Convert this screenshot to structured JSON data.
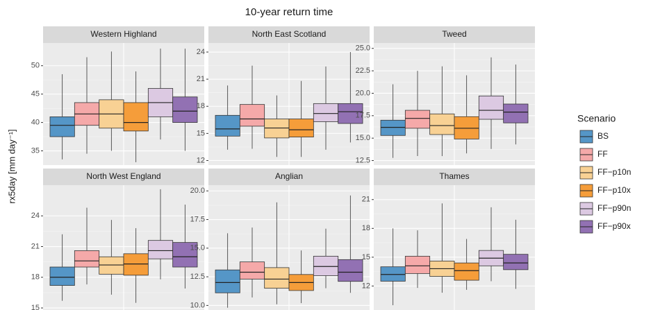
{
  "figure": {
    "title": "10-year return time",
    "y_label": "rx5day [mm day⁻¹]",
    "legend_title": "Scenario",
    "scenarios": [
      {
        "name": "BS",
        "color": "#5596c7"
      },
      {
        "name": "FF",
        "color": "#f5a9a9"
      },
      {
        "name": "FF−p10n",
        "color": "#f8d194"
      },
      {
        "name": "FF−p10x",
        "color": "#f59d3a"
      },
      {
        "name": "FF−p90n",
        "color": "#dcc9e2"
      },
      {
        "name": "FF−p90x",
        "color": "#9271b3"
      }
    ]
  },
  "chart_data": [
    {
      "type": "box",
      "title": "Western Highland",
      "ylim": [
        32.5,
        54
      ],
      "yticks": [
        35,
        40,
        45,
        50
      ],
      "grid": true,
      "boxes": [
        {
          "whislo": 33.5,
          "q1": 37.5,
          "med": 39.5,
          "q3": 41,
          "whishi": 48.5
        },
        {
          "whislo": 34.5,
          "q1": 39.5,
          "med": 41.5,
          "q3": 43.5,
          "whishi": 51.5
        },
        {
          "whislo": 35,
          "q1": 39,
          "med": 41.5,
          "q3": 44,
          "whishi": 52.5
        },
        {
          "whislo": 33,
          "q1": 38.5,
          "med": 40,
          "q3": 43.5,
          "whishi": 49
        },
        {
          "whislo": 37,
          "q1": 41,
          "med": 43.5,
          "q3": 46,
          "whishi": 53
        },
        {
          "whislo": 35,
          "q1": 40,
          "med": 42,
          "q3": 44.5,
          "whishi": 53
        }
      ]
    },
    {
      "type": "box",
      "title": "North East Scotland",
      "ylim": [
        11.5,
        25
      ],
      "yticks": [
        12,
        15,
        18,
        21,
        24
      ],
      "grid": true,
      "boxes": [
        {
          "whislo": 13.2,
          "q1": 14.7,
          "med": 15.5,
          "q3": 17,
          "whishi": 20.3
        },
        {
          "whislo": 13.3,
          "q1": 15.8,
          "med": 16.6,
          "q3": 18.2,
          "whishi": 22.5
        },
        {
          "whislo": 12.4,
          "q1": 14.5,
          "med": 15.6,
          "q3": 16.6,
          "whishi": 19.2
        },
        {
          "whislo": 12.4,
          "q1": 14.6,
          "med": 15.4,
          "q3": 16.6,
          "whishi": 20.8
        },
        {
          "whislo": 13.2,
          "q1": 16.3,
          "med": 17.2,
          "q3": 18.3,
          "whishi": 22.4
        },
        {
          "whislo": 14,
          "q1": 16.1,
          "med": 17.4,
          "q3": 18.3,
          "whishi": 24
        }
      ]
    },
    {
      "type": "box",
      "title": "Tweed",
      "ylim": [
        12,
        25.6
      ],
      "yticks": [
        12.5,
        {
          "value": 15,
          "label": "15.0"
        },
        17.5,
        {
          "value": 20,
          "label": "20.0"
        },
        22.5,
        {
          "value": 25,
          "label": "25.0"
        }
      ],
      "grid": true,
      "boxes": [
        {
          "whislo": 12.8,
          "q1": 15.3,
          "med": 16.2,
          "q3": 17,
          "whishi": 21
        },
        {
          "whislo": 13,
          "q1": 16.1,
          "med": 17.2,
          "q3": 18.1,
          "whishi": 22.5
        },
        {
          "whislo": 13,
          "q1": 15.4,
          "med": 16.4,
          "q3": 17.7,
          "whishi": 23
        },
        {
          "whislo": 13.3,
          "q1": 14.9,
          "med": 16.1,
          "q3": 17.4,
          "whishi": 22
        },
        {
          "whislo": 13.8,
          "q1": 17.1,
          "med": 18.1,
          "q3": 19.7,
          "whishi": 24
        },
        {
          "whislo": 14.3,
          "q1": 16.7,
          "med": 17.9,
          "q3": 18.8,
          "whishi": 23.2
        }
      ]
    },
    {
      "type": "box",
      "title": "North West England",
      "ylim": [
        14.8,
        27
      ],
      "yticks": [
        15,
        18,
        21,
        24
      ],
      "grid": true,
      "boxes": [
        {
          "whislo": 15.7,
          "q1": 17.2,
          "med": 18,
          "q3": 19,
          "whishi": 22.2
        },
        {
          "whislo": 17.3,
          "q1": 19,
          "med": 19.6,
          "q3": 20.6,
          "whishi": 24.8
        },
        {
          "whislo": 16.3,
          "q1": 18.3,
          "med": 19.2,
          "q3": 20,
          "whishi": 23.6
        },
        {
          "whislo": 15.5,
          "q1": 18.2,
          "med": 19.3,
          "q3": 20.3,
          "whishi": 22.8
        },
        {
          "whislo": 17.8,
          "q1": 19.8,
          "med": 20.6,
          "q3": 21.6,
          "whishi": 26.6
        },
        {
          "whislo": 16.9,
          "q1": 19,
          "med": 20,
          "q3": 21.4,
          "whishi": 25.1
        }
      ]
    },
    {
      "type": "box",
      "title": "Anglian",
      "ylim": [
        9.6,
        20.5
      ],
      "yticks": [
        {
          "value": 10,
          "label": "10.0"
        },
        12.5,
        {
          "value": 15,
          "label": "15.0"
        },
        17.5,
        {
          "value": 20,
          "label": "20.0"
        }
      ],
      "grid": true,
      "boxes": [
        {
          "whislo": 9.8,
          "q1": 11.1,
          "med": 12,
          "q3": 13.1,
          "whishi": 16.3
        },
        {
          "whislo": 10.7,
          "q1": 12.3,
          "med": 12.9,
          "q3": 13.8,
          "whishi": 16.8
        },
        {
          "whislo": 10.1,
          "q1": 11.5,
          "med": 12.3,
          "q3": 13.3,
          "whishi": 19
        },
        {
          "whislo": 10.2,
          "q1": 11.3,
          "med": 12,
          "q3": 12.7,
          "whishi": 14.8
        },
        {
          "whislo": 11.5,
          "q1": 12.6,
          "med": 13.4,
          "q3": 14.3,
          "whishi": 16.7
        },
        {
          "whislo": 11.1,
          "q1": 12.1,
          "med": 12.9,
          "q3": 14,
          "whishi": 19.6
        }
      ]
    },
    {
      "type": "box",
      "title": "Thames",
      "ylim": [
        9.5,
        22.5
      ],
      "yticks": [
        12,
        15,
        18,
        21
      ],
      "grid": true,
      "boxes": [
        {
          "whislo": 10,
          "q1": 12.5,
          "med": 13.2,
          "q3": 14,
          "whishi": 18
        },
        {
          "whislo": 11.8,
          "q1": 13.3,
          "med": 14.1,
          "q3": 15.1,
          "whishi": 17.8
        },
        {
          "whislo": 11.3,
          "q1": 13,
          "med": 13.8,
          "q3": 14.6,
          "whishi": 20.6
        },
        {
          "whislo": 11.6,
          "q1": 12.6,
          "med": 13.6,
          "q3": 14.4,
          "whishi": 16.9
        },
        {
          "whislo": 12.5,
          "q1": 14.1,
          "med": 14.9,
          "q3": 15.7,
          "whishi": 20.2
        },
        {
          "whislo": 11.7,
          "q1": 13.7,
          "med": 14.4,
          "q3": 15.3,
          "whishi": 18.9
        }
      ]
    }
  ]
}
